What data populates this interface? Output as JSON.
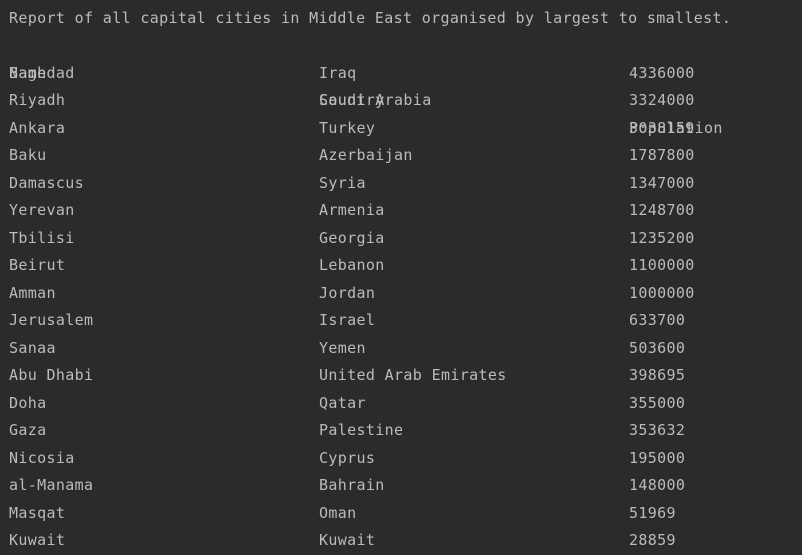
{
  "report": {
    "title": "Report of all capital cities in Middle East organised by largest to smallest.",
    "headers": {
      "name": "Name",
      "country": "Country",
      "population": "Population"
    },
    "rows": [
      {
        "name": "Baghdad",
        "country": "Iraq",
        "population": "4336000"
      },
      {
        "name": "Riyadh",
        "country": "Saudi Arabia",
        "population": "3324000"
      },
      {
        "name": "Ankara",
        "country": "Turkey",
        "population": "3038159"
      },
      {
        "name": "Baku",
        "country": "Azerbaijan",
        "population": "1787800"
      },
      {
        "name": "Damascus",
        "country": "Syria",
        "population": "1347000"
      },
      {
        "name": "Yerevan",
        "country": "Armenia",
        "population": "1248700"
      },
      {
        "name": "Tbilisi",
        "country": "Georgia",
        "population": "1235200"
      },
      {
        "name": "Beirut",
        "country": "Lebanon",
        "population": "1100000"
      },
      {
        "name": "Amman",
        "country": "Jordan",
        "population": "1000000"
      },
      {
        "name": "Jerusalem",
        "country": "Israel",
        "population": "633700"
      },
      {
        "name": "Sanaa",
        "country": "Yemen",
        "population": "503600"
      },
      {
        "name": "Abu Dhabi",
        "country": "United Arab Emirates",
        "population": "398695"
      },
      {
        "name": "Doha",
        "country": "Qatar",
        "population": "355000"
      },
      {
        "name": "Gaza",
        "country": "Palestine",
        "population": "353632"
      },
      {
        "name": "Nicosia",
        "country": "Cyprus",
        "population": "195000"
      },
      {
        "name": "al-Manama",
        "country": "Bahrain",
        "population": "148000"
      },
      {
        "name": "Masqat",
        "country": "Oman",
        "population": "51969"
      },
      {
        "name": "Kuwait",
        "country": "Kuwait",
        "population": "28859"
      }
    ]
  },
  "theme": {
    "background": "#2b2b2b",
    "text": "#bbbbbb"
  }
}
